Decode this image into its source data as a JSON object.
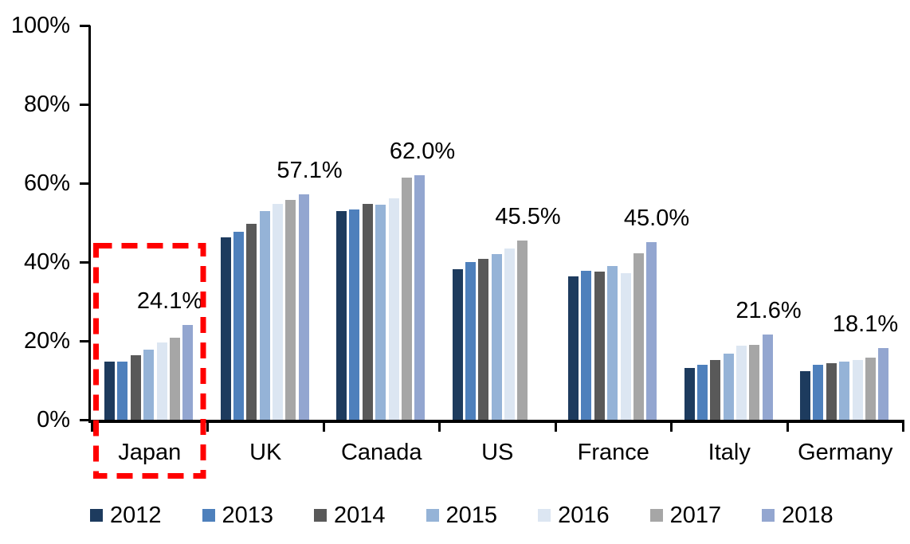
{
  "chart_data": {
    "type": "bar",
    "title": "",
    "xlabel": "",
    "ylabel": "",
    "y_axis": {
      "tick_labels": [
        "100%",
        "80%",
        "60%",
        "40%",
        "20%",
        "0%"
      ],
      "min": 0,
      "max": 100,
      "grid": false
    },
    "categories": [
      "Japan",
      "UK",
      "Canada",
      "US",
      "France",
      "Italy",
      "Germany"
    ],
    "series": [
      {
        "name": "2012",
        "color": "#1d3b5e",
        "values": [
          14.7,
          46.3,
          52.9,
          38.2,
          36.4,
          13.1,
          12.3
        ]
      },
      {
        "name": "2013",
        "color": "#4e80bc",
        "values": [
          14.8,
          47.6,
          53.3,
          40.1,
          37.7,
          14.0,
          13.9
        ]
      },
      {
        "name": "2014",
        "color": "#595959",
        "values": [
          16.4,
          49.8,
          54.8,
          40.9,
          37.5,
          15.2,
          14.3
        ]
      },
      {
        "name": "2015",
        "color": "#95b3d7",
        "values": [
          17.8,
          53.0,
          54.6,
          42.1,
          38.9,
          16.7,
          14.7
        ]
      },
      {
        "name": "2016",
        "color": "#dce6f2",
        "values": [
          19.6,
          54.7,
          56.1,
          43.5,
          37.2,
          18.8,
          15.2
        ]
      },
      {
        "name": "2017",
        "color": "#a6a6a6",
        "values": [
          20.9,
          55.7,
          61.5,
          45.5,
          42.2,
          19.1,
          15.8
        ]
      },
      {
        "name": "2018",
        "color": "#93a6d0",
        "values": [
          24.1,
          57.1,
          62.0,
          null,
          45.0,
          21.6,
          18.1
        ]
      }
    ],
    "data_labels": [
      "24.1%",
      "57.1%",
      "62.0%",
      "45.5%",
      "45.0%",
      "21.6%",
      "18.1%"
    ],
    "legend": {
      "position": "bottom",
      "entries": [
        "2012",
        "2013",
        "2014",
        "2015",
        "2016",
        "2017",
        "2018"
      ]
    },
    "highlight": {
      "category": "Japan",
      "style": "red-dashed-rectangle",
      "color": "#ff0000"
    },
    "colors": {
      "axis": "#000000",
      "text": "#000000",
      "background": "#ffffff"
    }
  }
}
